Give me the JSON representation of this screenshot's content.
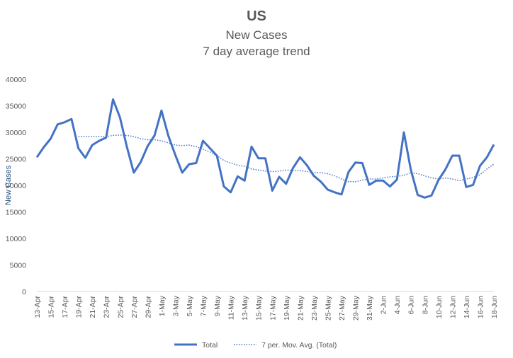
{
  "chart_data": {
    "type": "line",
    "title": "US",
    "subtitle_1": "New Cases",
    "subtitle_2": "7 day average trend",
    "xlabel": "",
    "ylabel": "New Cases",
    "ylim": [
      0,
      40000
    ],
    "yticks": [
      0,
      5000,
      10000,
      15000,
      20000,
      25000,
      30000,
      35000,
      40000
    ],
    "grid": false,
    "legend_position": "bottom",
    "x": [
      "13-Apr",
      "14-Apr",
      "15-Apr",
      "16-Apr",
      "17-Apr",
      "18-Apr",
      "19-Apr",
      "20-Apr",
      "21-Apr",
      "22-Apr",
      "23-Apr",
      "24-Apr",
      "25-Apr",
      "26-Apr",
      "27-Apr",
      "28-Apr",
      "29-Apr",
      "30-Apr",
      "1-May",
      "2-May",
      "3-May",
      "4-May",
      "5-May",
      "6-May",
      "7-May",
      "8-May",
      "9-May",
      "10-May",
      "11-May",
      "12-May",
      "13-May",
      "14-May",
      "15-May",
      "16-May",
      "17-May",
      "18-May",
      "19-May",
      "20-May",
      "21-May",
      "22-May",
      "23-May",
      "24-May",
      "25-May",
      "26-May",
      "27-May",
      "28-May",
      "29-May",
      "30-May",
      "31-May",
      "1-Jun",
      "2-Jun",
      "3-Jun",
      "4-Jun",
      "5-Jun",
      "6-Jun",
      "7-Jun",
      "8-Jun",
      "9-Jun",
      "10-Jun",
      "11-Jun",
      "12-Jun",
      "13-Jun",
      "14-Jun",
      "15-Jun",
      "16-Jun",
      "17-Jun",
      "18-Jun"
    ],
    "xtick_labels": [
      "13-Apr",
      "15-Apr",
      "17-Apr",
      "19-Apr",
      "21-Apr",
      "23-Apr",
      "25-Apr",
      "27-Apr",
      "29-Apr",
      "1-May",
      "3-May",
      "5-May",
      "7-May",
      "9-May",
      "11-May",
      "13-May",
      "15-May",
      "17-May",
      "19-May",
      "21-May",
      "23-May",
      "25-May",
      "27-May",
      "29-May",
      "31-May",
      "2-Jun",
      "4-Jun",
      "6-Jun",
      "8-Jun",
      "10-Jun",
      "12-Jun",
      "14-Jun",
      "16-Jun",
      "18-Jun"
    ],
    "series": [
      {
        "name": "Total",
        "style": "solid",
        "color": "#4472c4",
        "values": [
          25300,
          27200,
          28800,
          31500,
          31900,
          32500,
          27000,
          25200,
          27600,
          28400,
          29000,
          36200,
          32800,
          27300,
          22400,
          24400,
          27400,
          29400,
          34100,
          29300,
          25700,
          22400,
          24000,
          24200,
          28400,
          27000,
          25600,
          19800,
          18700,
          21700,
          20900,
          27300,
          25100,
          25100,
          19000,
          21600,
          20300,
          23300,
          25300,
          23800,
          21800,
          20700,
          19200,
          18700,
          18300,
          22500,
          24300,
          24200,
          20100,
          20900,
          20900,
          19800,
          21100,
          30000,
          23000,
          18200,
          17700,
          18100,
          21000,
          23000,
          25600,
          25600,
          19700,
          20100,
          23700,
          25300,
          27700
        ]
      },
      {
        "name": "7 per. Mov. Avg. (Total)",
        "style": "dotted",
        "color": "#4472c4",
        "values": [
          null,
          null,
          null,
          null,
          null,
          null,
          29200,
          29200,
          29200,
          29200,
          29200,
          29400,
          29500,
          29400,
          29200,
          28800,
          28600,
          28600,
          28400,
          28000,
          27600,
          27500,
          27600,
          27300,
          26800,
          26300,
          25600,
          24700,
          24200,
          23800,
          23600,
          23100,
          22900,
          22700,
          22600,
          22700,
          22900,
          22800,
          22800,
          22600,
          22400,
          22400,
          22200,
          21800,
          21200,
          20700,
          20700,
          21000,
          21200,
          21200,
          21400,
          21600,
          21700,
          21900,
          22400,
          22200,
          21800,
          21400,
          21200,
          21400,
          21200,
          20900,
          21200,
          21500,
          22000,
          23100,
          24000
        ]
      }
    ]
  }
}
